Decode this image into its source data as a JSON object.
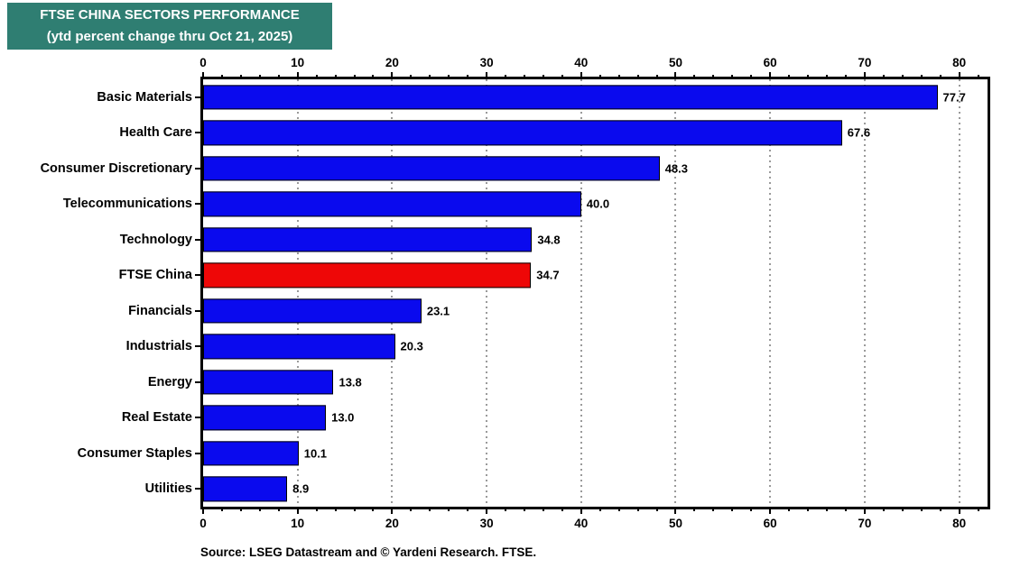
{
  "header": {
    "line1": "FTSE CHINA SECTORS PERFORMANCE",
    "line2": "(ytd percent change thru Oct 21, 2025)",
    "bg_color": "#2f7e72",
    "text_color": "#ffffff"
  },
  "source": "Source: LSEG Datastream and © Yardeni Research. FTSE.",
  "chart_data": {
    "type": "bar",
    "orientation": "horizontal",
    "title": "FTSE CHINA SECTORS PERFORMANCE (ytd percent change thru Oct 21, 2025)",
    "categories": [
      "Basic Materials",
      "Health Care",
      "Consumer Discretionary",
      "Telecommunications",
      "Technology",
      "FTSE China",
      "Financials",
      "Industrials",
      "Energy",
      "Real Estate",
      "Consumer Staples",
      "Utilities"
    ],
    "values": [
      77.7,
      67.6,
      48.3,
      40.0,
      34.8,
      34.7,
      23.1,
      20.3,
      13.8,
      13.0,
      10.1,
      8.9
    ],
    "value_labels": [
      "77.7",
      "67.6",
      "48.3",
      "40.0",
      "34.8",
      "34.7",
      "23.1",
      "20.3",
      "13.8",
      "13.0",
      "10.1",
      "8.9"
    ],
    "highlight_category": "FTSE China",
    "bar_color": "#0a0aee",
    "highlight_color": "#ee0707",
    "bar_border_color": "#000000",
    "xlabel": "",
    "ylabel": "",
    "axis": {
      "min": 0,
      "max": 83,
      "major_tick_step": 10,
      "minor_tick_step": 2,
      "major_tick_labels": [
        "0",
        "10",
        "20",
        "30",
        "40",
        "50",
        "60",
        "70",
        "80"
      ],
      "grid": true,
      "grid_color": "#9a9a9a",
      "grid_lines_at": [
        10,
        20,
        30,
        40,
        50,
        60,
        70,
        80
      ],
      "mirrored_axes": "top and bottom"
    }
  }
}
